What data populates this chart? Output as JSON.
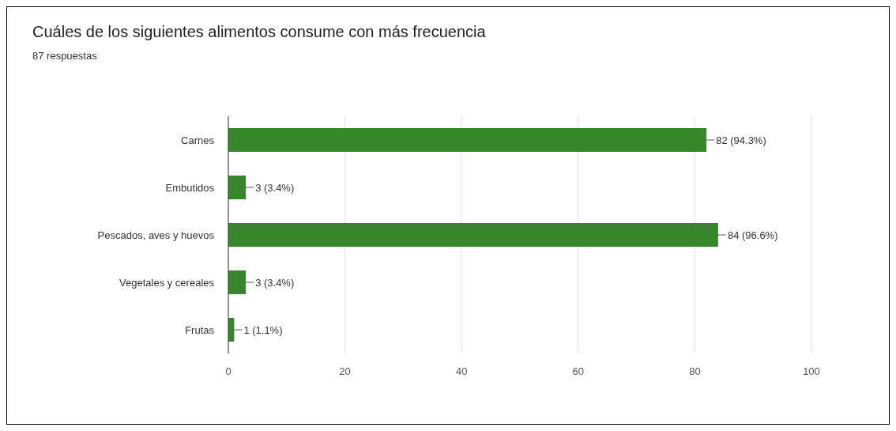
{
  "chart_data": {
    "type": "bar",
    "orientation": "horizontal",
    "title": "Cuáles de los siguientes alimentos consume con más frecuencia",
    "subtitle": "87 respuestas",
    "categories": [
      "Carnes",
      "Embutidos",
      "Pescados, aves y huevos",
      "Vegetales y cereales",
      "Frutas"
    ],
    "values": [
      82,
      3,
      84,
      3,
      1
    ],
    "value_labels": [
      "82 (94.3%)",
      "3 (3.4%)",
      "84 (96.6%)",
      "3 (3.4%)",
      "1 (1.1%)"
    ],
    "color": "#38862c",
    "xlim": [
      0,
      100
    ],
    "xticks": [
      0,
      20,
      40,
      60,
      80,
      100
    ],
    "grid": "x"
  }
}
